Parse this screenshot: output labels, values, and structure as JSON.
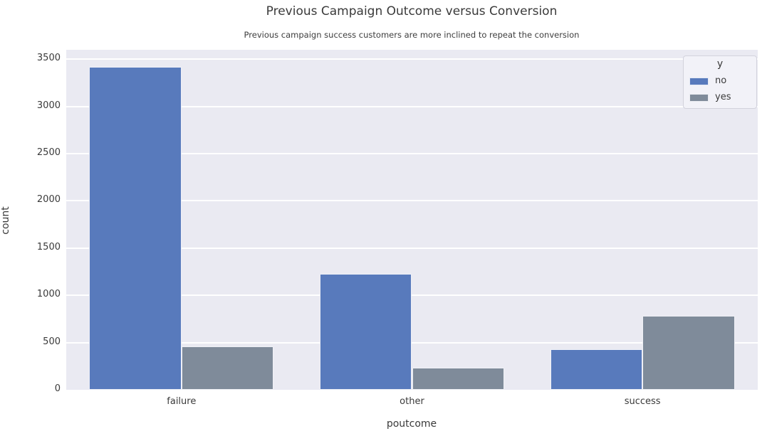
{
  "chart_data": {
    "type": "bar",
    "title": "Previous Campaign Outcome versus Conversion",
    "subtitle": "Previous campaign success customers are more inclined to repeat the conversion",
    "xlabel": "poutcome",
    "ylabel": "count",
    "categories": [
      "failure",
      "other",
      "success"
    ],
    "series": [
      {
        "name": "no",
        "color": "#587abc",
        "values": [
          3420,
          1230,
          430
        ]
      },
      {
        "name": "yes",
        "color": "#7f8b9a",
        "values": [
          460,
          230,
          780
        ]
      }
    ],
    "yticks": [
      0,
      500,
      1000,
      1500,
      2000,
      2500,
      3000,
      3500
    ],
    "ylim": [
      0,
      3600
    ],
    "grid": true,
    "legend": {
      "title": "y",
      "position": "upper right"
    },
    "colors": {
      "plot_background": "#eaeaf2",
      "gridline": "#ffffff",
      "text": "#3a3a3a"
    }
  }
}
